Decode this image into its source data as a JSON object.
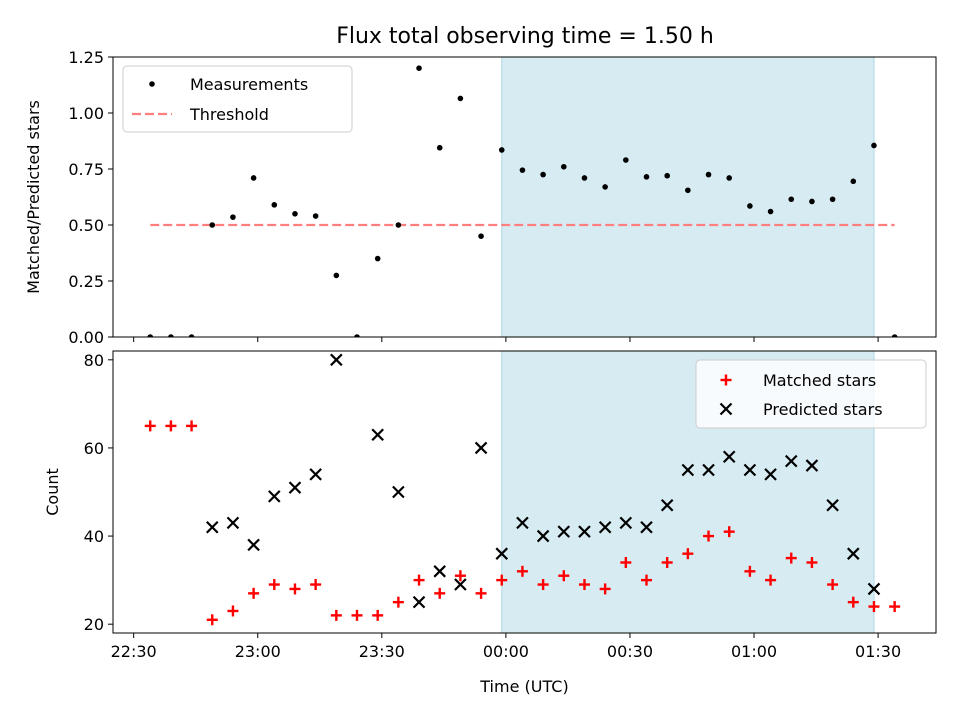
{
  "title": "Flux total observing time = 1.50 h",
  "colors": {
    "shade": "#add8e6",
    "threshold": "#ff7f7f",
    "measurement": "#000000",
    "matched": "#ff0000",
    "predicted": "#000000"
  },
  "chart_data": [
    {
      "type": "scatter",
      "ylabel": "Matched/Predicted stars",
      "ylim": [
        0,
        1.25
      ],
      "yticks": [
        0,
        0.25,
        0.5,
        0.75,
        1.0,
        1.25
      ],
      "ytick_labels": [
        "0.00",
        "0.25",
        "0.50",
        "0.75",
        "1.00",
        "1.25"
      ],
      "xlim": [
        "22:25",
        "01:44"
      ],
      "shaded_region": [
        "23:59",
        "01:29"
      ],
      "legend": {
        "position": "top-left",
        "entries": [
          "Measurements",
          "Threshold"
        ]
      },
      "threshold": {
        "name": "Threshold",
        "value": 0.5,
        "x_range": [
          "22:34",
          "01:34"
        ]
      },
      "series": [
        {
          "name": "Measurements",
          "x": [
            "22:34",
            "22:39",
            "22:44",
            "22:49",
            "22:54",
            "22:59",
            "23:04",
            "23:09",
            "23:14",
            "23:19",
            "23:24",
            "23:29",
            "23:34",
            "23:39",
            "23:44",
            "23:49",
            "23:54",
            "23:59",
            "00:04",
            "00:09",
            "00:14",
            "00:19",
            "00:24",
            "00:29",
            "00:34",
            "00:39",
            "00:44",
            "00:49",
            "00:54",
            "00:59",
            "01:04",
            "01:09",
            "01:14",
            "01:19",
            "01:24",
            "01:29",
            "01:34"
          ],
          "y": [
            0,
            0,
            0,
            0.5,
            0.535,
            0.71,
            0.59,
            0.55,
            0.54,
            0.275,
            0,
            0.35,
            0.5,
            1.2,
            0.845,
            1.065,
            0.45,
            0.835,
            0.745,
            0.725,
            0.76,
            0.71,
            0.67,
            0.79,
            0.715,
            0.72,
            0.655,
            0.725,
            0.71,
            0.585,
            0.56,
            0.615,
            0.605,
            0.615,
            0.695,
            0.855,
            0
          ]
        }
      ]
    },
    {
      "type": "scatter",
      "ylabel": "Count",
      "xlabel": "Time (UTC)",
      "ylim": [
        18,
        82
      ],
      "yticks": [
        20,
        40,
        60,
        80
      ],
      "xticks": [
        "22:30",
        "23:00",
        "23:30",
        "00:00",
        "00:30",
        "01:00",
        "01:30"
      ],
      "xlim": [
        "22:25",
        "01:44"
      ],
      "shaded_region": [
        "23:59",
        "01:29"
      ],
      "legend": {
        "position": "top-right",
        "entries": [
          "Matched stars",
          "Predicted stars"
        ]
      },
      "series": [
        {
          "name": "Matched stars",
          "marker": "+",
          "x": [
            "22:34",
            "22:39",
            "22:44",
            "22:49",
            "22:54",
            "22:59",
            "23:04",
            "23:09",
            "23:14",
            "23:19",
            "23:24",
            "23:29",
            "23:34",
            "23:39",
            "23:44",
            "23:49",
            "23:54",
            "23:59",
            "00:04",
            "00:09",
            "00:14",
            "00:19",
            "00:24",
            "00:29",
            "00:34",
            "00:39",
            "00:44",
            "00:49",
            "00:54",
            "00:59",
            "01:04",
            "01:09",
            "01:14",
            "01:19",
            "01:24",
            "01:29",
            "01:34"
          ],
          "y": [
            65,
            65,
            65,
            21,
            23,
            27,
            29,
            28,
            29,
            22,
            22,
            22,
            25,
            30,
            27,
            31,
            27,
            30,
            32,
            29,
            31,
            29,
            28,
            34,
            30,
            34,
            36,
            40,
            41,
            32,
            30,
            35,
            34,
            29,
            25,
            24,
            24
          ]
        },
        {
          "name": "Predicted stars",
          "marker": "x",
          "x": [
            "22:49",
            "22:54",
            "22:59",
            "23:04",
            "23:09",
            "23:14",
            "23:19",
            "23:29",
            "23:34",
            "23:39",
            "23:44",
            "23:49",
            "23:54",
            "23:59",
            "00:04",
            "00:09",
            "00:14",
            "00:19",
            "00:24",
            "00:29",
            "00:34",
            "00:39",
            "00:44",
            "00:49",
            "00:54",
            "00:59",
            "01:04",
            "01:09",
            "01:14",
            "01:19",
            "01:24",
            "01:29"
          ],
          "y": [
            42,
            43,
            38,
            49,
            51,
            54,
            80,
            63,
            50,
            25,
            32,
            29,
            60,
            36,
            43,
            40,
            41,
            41,
            42,
            43,
            42,
            47,
            55,
            55,
            58,
            55,
            54,
            57,
            56,
            47,
            36,
            28
          ]
        }
      ]
    }
  ]
}
